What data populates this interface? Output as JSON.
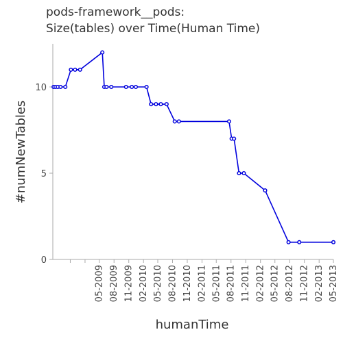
{
  "chart_data": {
    "type": "line",
    "title_lines": [
      "pods-framework__pods:",
      "Size(tables) over Time(Human Time)"
    ],
    "xlabel": "humanTime",
    "ylabel": "#numNewTables",
    "ylim": [
      0,
      12.5
    ],
    "y_ticks": [
      0,
      5,
      10
    ],
    "xlim": [
      "2008-07-15",
      "2013-05-01"
    ],
    "x_ticks": [
      "05-2009",
      "08-2009",
      "11-2009",
      "02-2010",
      "05-2010",
      "08-2010",
      "11-2010",
      "02-2011",
      "05-2011",
      "08-2011",
      "11-2011",
      "02-2012",
      "05-2012",
      "08-2012",
      "11-2012",
      "02-2013",
      "05-2013"
    ],
    "grid": false,
    "line_color": "#0000dd",
    "series": [
      {
        "points": [
          {
            "x": "2008-07-20",
            "y": 10
          },
          {
            "x": "2008-08-01",
            "y": 10
          },
          {
            "x": "2008-08-15",
            "y": 10
          },
          {
            "x": "2008-09-01",
            "y": 10
          },
          {
            "x": "2008-10-01",
            "y": 10
          },
          {
            "x": "2008-11-05",
            "y": 11
          },
          {
            "x": "2008-12-01",
            "y": 11
          },
          {
            "x": "2009-01-01",
            "y": 11
          },
          {
            "x": "2009-05-20",
            "y": 12
          },
          {
            "x": "2009-06-01",
            "y": 10
          },
          {
            "x": "2009-06-15",
            "y": 10
          },
          {
            "x": "2009-07-15",
            "y": 10
          },
          {
            "x": "2009-10-15",
            "y": 10
          },
          {
            "x": "2009-11-20",
            "y": 10
          },
          {
            "x": "2009-12-15",
            "y": 10
          },
          {
            "x": "2010-02-20",
            "y": 10
          },
          {
            "x": "2010-03-20",
            "y": 9
          },
          {
            "x": "2010-04-20",
            "y": 9
          },
          {
            "x": "2010-05-20",
            "y": 9
          },
          {
            "x": "2010-06-25",
            "y": 9
          },
          {
            "x": "2010-08-15",
            "y": 8
          },
          {
            "x": "2010-09-10",
            "y": 8
          },
          {
            "x": "2011-07-20",
            "y": 8
          },
          {
            "x": "2011-08-05",
            "y": 7
          },
          {
            "x": "2011-08-20",
            "y": 7
          },
          {
            "x": "2011-09-20",
            "y": 5
          },
          {
            "x": "2011-10-20",
            "y": 5
          },
          {
            "x": "2012-03-01",
            "y": 4
          },
          {
            "x": "2012-07-25",
            "y": 1
          },
          {
            "x": "2012-09-30",
            "y": 1
          },
          {
            "x": "2013-05-01",
            "y": 1
          }
        ]
      }
    ]
  }
}
